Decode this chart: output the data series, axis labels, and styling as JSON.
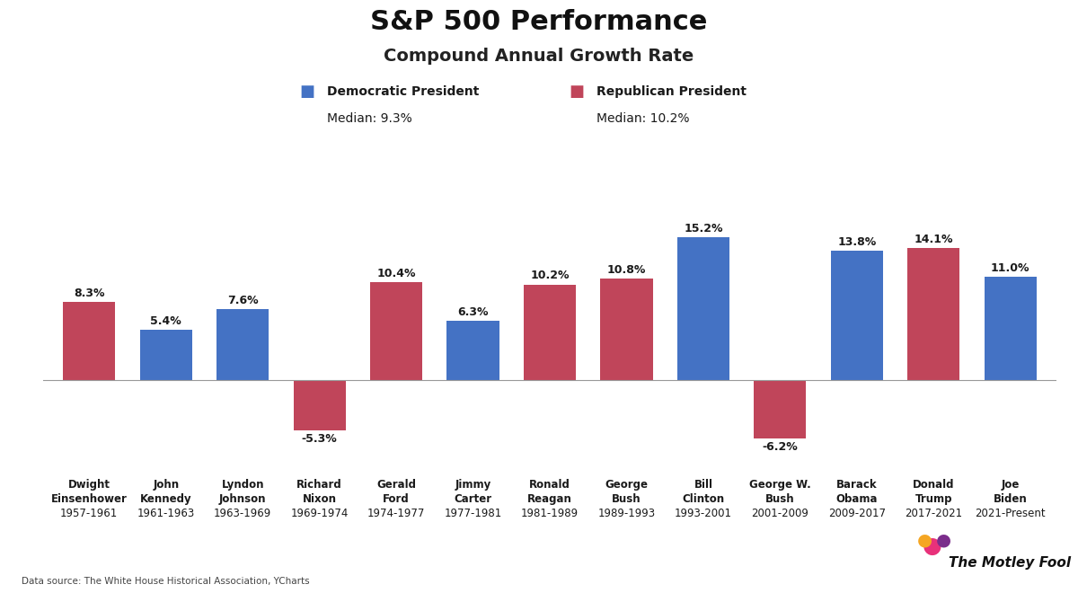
{
  "title": "S&P 500 Performance",
  "subtitle": "Compound Annual Growth Rate",
  "presidents": [
    {
      "first": "Dwight",
      "last": "Einsenhower",
      "years": "1957-1961",
      "value": 8.3,
      "party": "R"
    },
    {
      "first": "John",
      "last": "Kennedy",
      "years": "1961-1963",
      "value": 5.4,
      "party": "D"
    },
    {
      "first": "Lyndon",
      "last": "Johnson",
      "years": "1963-1969",
      "value": 7.6,
      "party": "D"
    },
    {
      "first": "Richard",
      "last": "Nixon",
      "years": "1969-1974",
      "value": -5.3,
      "party": "R"
    },
    {
      "first": "Gerald",
      "last": "Ford",
      "years": "1974-1977",
      "value": 10.4,
      "party": "R"
    },
    {
      "first": "Jimmy",
      "last": "Carter",
      "years": "1977-1981",
      "value": 6.3,
      "party": "D"
    },
    {
      "first": "Ronald",
      "last": "Reagan",
      "years": "1981-1989",
      "value": 10.2,
      "party": "R"
    },
    {
      "first": "George",
      "last": "Bush",
      "years": "1989-1993",
      "value": 10.8,
      "party": "R"
    },
    {
      "first": "Bill",
      "last": "Clinton",
      "years": "1993-2001",
      "value": 15.2,
      "party": "D"
    },
    {
      "first": "George W.",
      "last": "Bush",
      "years": "2001-2009",
      "value": -6.2,
      "party": "R"
    },
    {
      "first": "Barack",
      "last": "Obama",
      "years": "2009-2017",
      "value": 13.8,
      "party": "D"
    },
    {
      "first": "Donald",
      "last": "Trump",
      "years": "2017-2021",
      "value": 14.1,
      "party": "R"
    },
    {
      "first": "Joe",
      "last": "Biden",
      "years": "2021-Present",
      "value": 11.0,
      "party": "D"
    }
  ],
  "dem_color": "#4472C4",
  "rep_color": "#C0455A",
  "dem_label": "Democratic President",
  "rep_label": "Republican President",
  "dem_median": "Median: 9.3%",
  "rep_median": "Median: 10.2%",
  "background_color": "#FFFFFF",
  "data_source": "Data source: The White House Historical Association, YCharts",
  "ylim_min": -10,
  "ylim_max": 19,
  "bar_width": 0.68
}
